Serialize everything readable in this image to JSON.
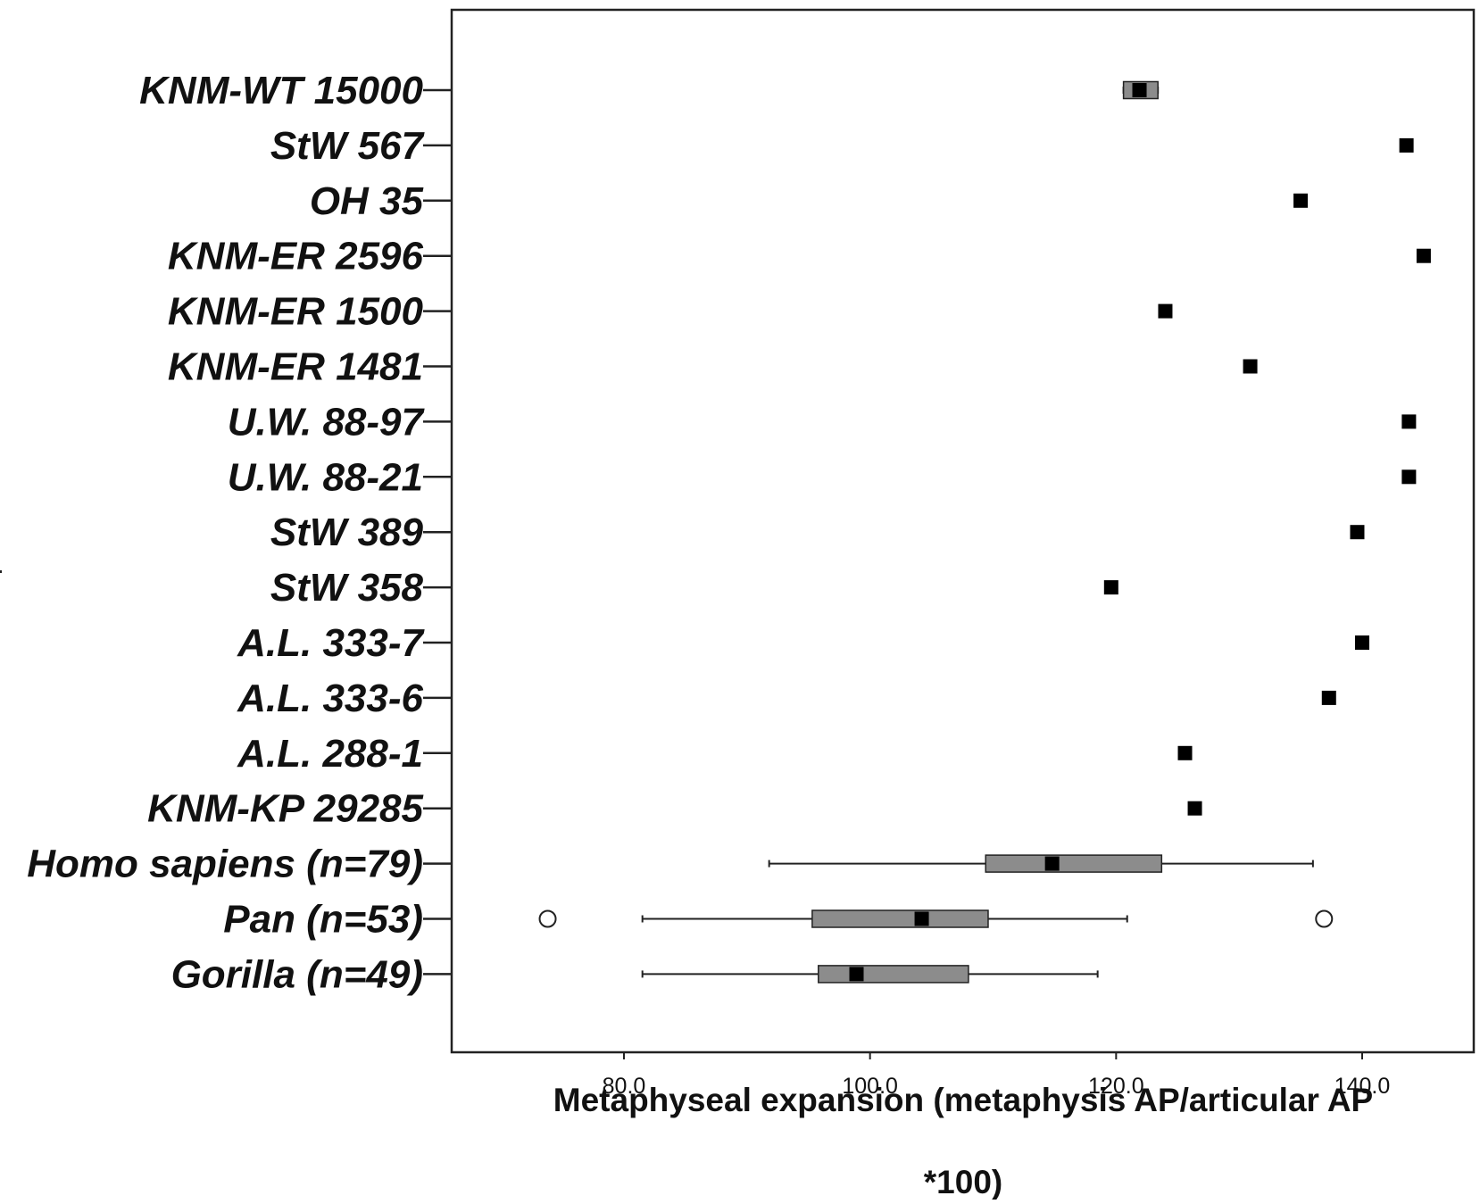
{
  "chart_data": {
    "type": "boxplot",
    "orientation": "horizontal",
    "title": "",
    "xlabel_lines": [
      "Metaphyseal expansion (metaphysis AP/articular AP",
      "*100)"
    ],
    "ylabel": "",
    "xlim": [
      66,
      150
    ],
    "xticks": [
      80,
      100,
      120,
      140
    ],
    "xtick_labels": [
      "80.0",
      "100.0",
      "120.0",
      "140.0"
    ],
    "grid": false,
    "legend": null,
    "colors": {
      "box_fill": "#8c8c8c",
      "box_stroke": "#222222",
      "median": "#000000",
      "point": "#000000",
      "axis": "#222222",
      "outlier_stroke": "#222222",
      "outlier_fill": "#ffffff"
    },
    "categories": [
      "KNM-WT 15000",
      "StW 567",
      "OH 35",
      "KNM-ER 2596",
      "KNM-ER 1500",
      "KNM-ER 1481",
      "U.W. 88-97",
      "U.W. 88-21",
      "StW 389",
      "StW 358",
      "A.L. 333-7",
      "A.L. 333-6",
      "A.L. 288-1",
      "KNM-KP 29285",
      "Homo sapiens (n=79)",
      "Pan (n=53)",
      "Gorilla (n=49)"
    ],
    "series": [
      {
        "name": "KNM-WT 15000",
        "kind": "box",
        "min": 120.6,
        "q1": 120.6,
        "median": 121.9,
        "q3": 123.4,
        "max": 123.4,
        "outliers": []
      },
      {
        "name": "StW 567",
        "kind": "point",
        "value": 143.6
      },
      {
        "name": "OH 35",
        "kind": "point",
        "value": 135.0
      },
      {
        "name": "KNM-ER 2596",
        "kind": "point",
        "value": 145.0
      },
      {
        "name": "KNM-ER 1500",
        "kind": "point",
        "value": 124.0
      },
      {
        "name": "KNM-ER 1481",
        "kind": "point",
        "value": 130.9
      },
      {
        "name": "U.W. 88-97",
        "kind": "point",
        "value": 143.8
      },
      {
        "name": "U.W. 88-21",
        "kind": "point",
        "value": 143.8
      },
      {
        "name": "StW 389",
        "kind": "point",
        "value": 139.6
      },
      {
        "name": "StW 358",
        "kind": "point",
        "value": 119.6
      },
      {
        "name": "A.L. 333-7",
        "kind": "point",
        "value": 140.0
      },
      {
        "name": "A.L. 333-6",
        "kind": "point",
        "value": 137.3
      },
      {
        "name": "A.L. 288-1",
        "kind": "point",
        "value": 125.6
      },
      {
        "name": "KNM-KP 29285",
        "kind": "point",
        "value": 126.4
      },
      {
        "name": "Homo sapiens (n=79)",
        "kind": "box",
        "min": 91.8,
        "q1": 109.4,
        "median": 114.8,
        "q3": 123.7,
        "max": 136.0,
        "outliers": []
      },
      {
        "name": "Pan (n=53)",
        "kind": "box",
        "min": 81.5,
        "q1": 95.3,
        "median": 104.2,
        "q3": 109.6,
        "max": 120.9,
        "outliers": [
          73.8,
          136.9
        ]
      },
      {
        "name": "Gorilla (n=49)",
        "kind": "box",
        "min": 81.5,
        "q1": 95.8,
        "median": 98.9,
        "q3": 108.0,
        "max": 118.5,
        "outliers": []
      }
    ]
  }
}
